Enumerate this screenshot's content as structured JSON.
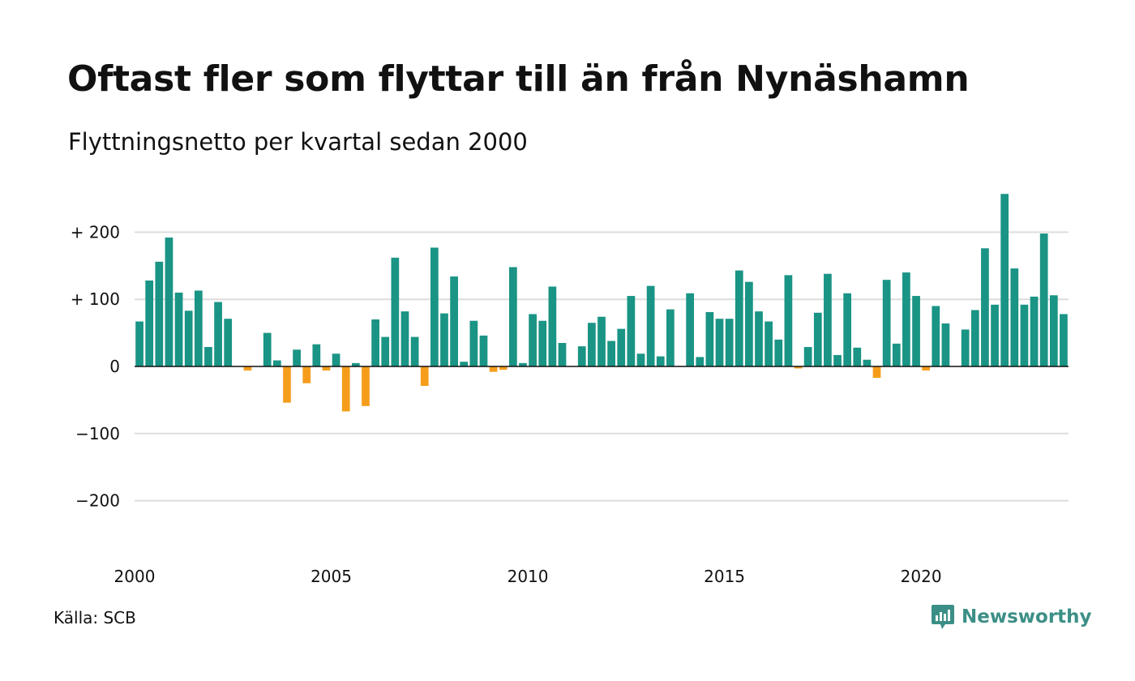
{
  "title": "Oftast fler som flyttar till än från Nynäshamn",
  "subtitle": "Flyttningsnetto per kvartal sedan 2000",
  "source": "Källa: SCB",
  "brand": {
    "name": "Newsworthy",
    "icon": "newsworthy-logo-icon"
  },
  "colors": {
    "positive": "#1a9485",
    "negative": "#f59d1b",
    "grid": "#dddddd",
    "baseline": "#111111"
  },
  "chart_data": {
    "type": "bar",
    "title": "Oftast fler som flyttar till än från Nynäshamn",
    "subtitle": "Flyttningsnetto per kvartal sedan 2000",
    "xlabel": "",
    "ylabel": "",
    "ylim": [
      -240,
      270
    ],
    "yticks": [
      200,
      100,
      0,
      -100,
      -200
    ],
    "ytick_labels": [
      "+ 200",
      "+ 100",
      "0",
      "−100",
      "−200"
    ],
    "xticks": [
      "2000",
      "2005",
      "2010",
      "2015",
      "2020"
    ],
    "grid": true,
    "start": "2000 Q1",
    "frequency": "quarter",
    "values": [
      67,
      128,
      156,
      192,
      110,
      83,
      113,
      29,
      96,
      71,
      0,
      -6,
      0,
      50,
      9,
      -54,
      25,
      -25,
      33,
      -6,
      19,
      -67,
      5,
      -59,
      70,
      44,
      162,
      82,
      44,
      -29,
      177,
      79,
      134,
      7,
      68,
      46,
      -8,
      -5,
      148,
      5,
      78,
      68,
      119,
      35,
      0,
      30,
      65,
      74,
      38,
      56,
      105,
      19,
      120,
      15,
      85,
      0,
      109,
      14,
      81,
      71,
      71,
      143,
      126,
      82,
      67,
      40,
      136,
      -3,
      29,
      80,
      138,
      17,
      109,
      28,
      10,
      -17,
      129,
      34,
      140,
      105,
      -6,
      90,
      64,
      0,
      55,
      84,
      176,
      92,
      257,
      146,
      92,
      104,
      198,
      106,
      78
    ]
  }
}
